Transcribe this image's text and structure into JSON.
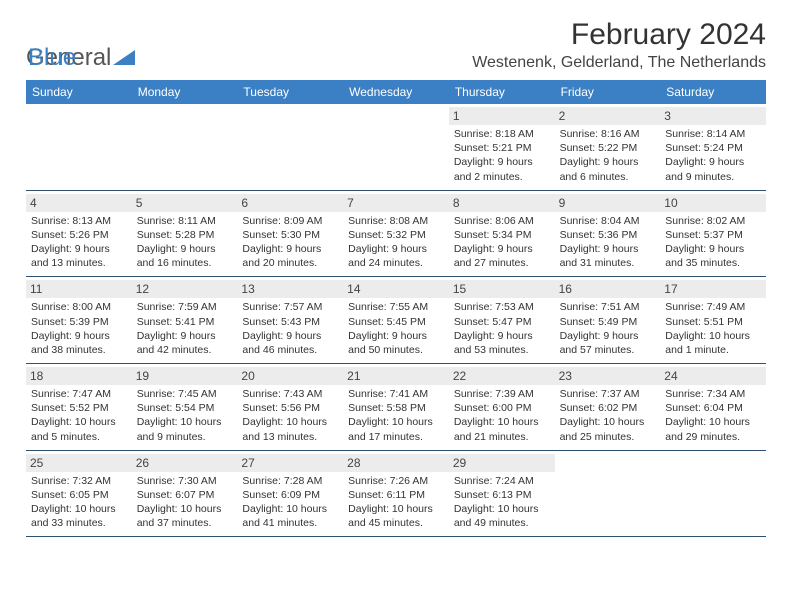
{
  "logo": {
    "part1": "General",
    "part2": "Blue"
  },
  "title": "February 2024",
  "location": "Westenenk, Gelderland, The Netherlands",
  "colors": {
    "header_bg": "#3b7fc4",
    "row_border": "#30506f",
    "daynum_bg": "#ececec",
    "text": "#333333"
  },
  "days_of_week": [
    "Sunday",
    "Monday",
    "Tuesday",
    "Wednesday",
    "Thursday",
    "Friday",
    "Saturday"
  ],
  "weeks": [
    [
      {
        "n": "",
        "sr": "",
        "ss": "",
        "dl1": "",
        "dl2": "",
        "empty": true
      },
      {
        "n": "",
        "sr": "",
        "ss": "",
        "dl1": "",
        "dl2": "",
        "empty": true
      },
      {
        "n": "",
        "sr": "",
        "ss": "",
        "dl1": "",
        "dl2": "",
        "empty": true
      },
      {
        "n": "",
        "sr": "",
        "ss": "",
        "dl1": "",
        "dl2": "",
        "empty": true
      },
      {
        "n": "1",
        "sr": "Sunrise: 8:18 AM",
        "ss": "Sunset: 5:21 PM",
        "dl1": "Daylight: 9 hours",
        "dl2": "and 2 minutes."
      },
      {
        "n": "2",
        "sr": "Sunrise: 8:16 AM",
        "ss": "Sunset: 5:22 PM",
        "dl1": "Daylight: 9 hours",
        "dl2": "and 6 minutes."
      },
      {
        "n": "3",
        "sr": "Sunrise: 8:14 AM",
        "ss": "Sunset: 5:24 PM",
        "dl1": "Daylight: 9 hours",
        "dl2": "and 9 minutes."
      }
    ],
    [
      {
        "n": "4",
        "sr": "Sunrise: 8:13 AM",
        "ss": "Sunset: 5:26 PM",
        "dl1": "Daylight: 9 hours",
        "dl2": "and 13 minutes."
      },
      {
        "n": "5",
        "sr": "Sunrise: 8:11 AM",
        "ss": "Sunset: 5:28 PM",
        "dl1": "Daylight: 9 hours",
        "dl2": "and 16 minutes."
      },
      {
        "n": "6",
        "sr": "Sunrise: 8:09 AM",
        "ss": "Sunset: 5:30 PM",
        "dl1": "Daylight: 9 hours",
        "dl2": "and 20 minutes."
      },
      {
        "n": "7",
        "sr": "Sunrise: 8:08 AM",
        "ss": "Sunset: 5:32 PM",
        "dl1": "Daylight: 9 hours",
        "dl2": "and 24 minutes."
      },
      {
        "n": "8",
        "sr": "Sunrise: 8:06 AM",
        "ss": "Sunset: 5:34 PM",
        "dl1": "Daylight: 9 hours",
        "dl2": "and 27 minutes."
      },
      {
        "n": "9",
        "sr": "Sunrise: 8:04 AM",
        "ss": "Sunset: 5:36 PM",
        "dl1": "Daylight: 9 hours",
        "dl2": "and 31 minutes."
      },
      {
        "n": "10",
        "sr": "Sunrise: 8:02 AM",
        "ss": "Sunset: 5:37 PM",
        "dl1": "Daylight: 9 hours",
        "dl2": "and 35 minutes."
      }
    ],
    [
      {
        "n": "11",
        "sr": "Sunrise: 8:00 AM",
        "ss": "Sunset: 5:39 PM",
        "dl1": "Daylight: 9 hours",
        "dl2": "and 38 minutes."
      },
      {
        "n": "12",
        "sr": "Sunrise: 7:59 AM",
        "ss": "Sunset: 5:41 PM",
        "dl1": "Daylight: 9 hours",
        "dl2": "and 42 minutes."
      },
      {
        "n": "13",
        "sr": "Sunrise: 7:57 AM",
        "ss": "Sunset: 5:43 PM",
        "dl1": "Daylight: 9 hours",
        "dl2": "and 46 minutes."
      },
      {
        "n": "14",
        "sr": "Sunrise: 7:55 AM",
        "ss": "Sunset: 5:45 PM",
        "dl1": "Daylight: 9 hours",
        "dl2": "and 50 minutes."
      },
      {
        "n": "15",
        "sr": "Sunrise: 7:53 AM",
        "ss": "Sunset: 5:47 PM",
        "dl1": "Daylight: 9 hours",
        "dl2": "and 53 minutes."
      },
      {
        "n": "16",
        "sr": "Sunrise: 7:51 AM",
        "ss": "Sunset: 5:49 PM",
        "dl1": "Daylight: 9 hours",
        "dl2": "and 57 minutes."
      },
      {
        "n": "17",
        "sr": "Sunrise: 7:49 AM",
        "ss": "Sunset: 5:51 PM",
        "dl1": "Daylight: 10 hours",
        "dl2": "and 1 minute."
      }
    ],
    [
      {
        "n": "18",
        "sr": "Sunrise: 7:47 AM",
        "ss": "Sunset: 5:52 PM",
        "dl1": "Daylight: 10 hours",
        "dl2": "and 5 minutes."
      },
      {
        "n": "19",
        "sr": "Sunrise: 7:45 AM",
        "ss": "Sunset: 5:54 PM",
        "dl1": "Daylight: 10 hours",
        "dl2": "and 9 minutes."
      },
      {
        "n": "20",
        "sr": "Sunrise: 7:43 AM",
        "ss": "Sunset: 5:56 PM",
        "dl1": "Daylight: 10 hours",
        "dl2": "and 13 minutes."
      },
      {
        "n": "21",
        "sr": "Sunrise: 7:41 AM",
        "ss": "Sunset: 5:58 PM",
        "dl1": "Daylight: 10 hours",
        "dl2": "and 17 minutes."
      },
      {
        "n": "22",
        "sr": "Sunrise: 7:39 AM",
        "ss": "Sunset: 6:00 PM",
        "dl1": "Daylight: 10 hours",
        "dl2": "and 21 minutes."
      },
      {
        "n": "23",
        "sr": "Sunrise: 7:37 AM",
        "ss": "Sunset: 6:02 PM",
        "dl1": "Daylight: 10 hours",
        "dl2": "and 25 minutes."
      },
      {
        "n": "24",
        "sr": "Sunrise: 7:34 AM",
        "ss": "Sunset: 6:04 PM",
        "dl1": "Daylight: 10 hours",
        "dl2": "and 29 minutes."
      }
    ],
    [
      {
        "n": "25",
        "sr": "Sunrise: 7:32 AM",
        "ss": "Sunset: 6:05 PM",
        "dl1": "Daylight: 10 hours",
        "dl2": "and 33 minutes."
      },
      {
        "n": "26",
        "sr": "Sunrise: 7:30 AM",
        "ss": "Sunset: 6:07 PM",
        "dl1": "Daylight: 10 hours",
        "dl2": "and 37 minutes."
      },
      {
        "n": "27",
        "sr": "Sunrise: 7:28 AM",
        "ss": "Sunset: 6:09 PM",
        "dl1": "Daylight: 10 hours",
        "dl2": "and 41 minutes."
      },
      {
        "n": "28",
        "sr": "Sunrise: 7:26 AM",
        "ss": "Sunset: 6:11 PM",
        "dl1": "Daylight: 10 hours",
        "dl2": "and 45 minutes."
      },
      {
        "n": "29",
        "sr": "Sunrise: 7:24 AM",
        "ss": "Sunset: 6:13 PM",
        "dl1": "Daylight: 10 hours",
        "dl2": "and 49 minutes."
      },
      {
        "n": "",
        "sr": "",
        "ss": "",
        "dl1": "",
        "dl2": "",
        "empty": true
      },
      {
        "n": "",
        "sr": "",
        "ss": "",
        "dl1": "",
        "dl2": "",
        "empty": true
      }
    ]
  ]
}
